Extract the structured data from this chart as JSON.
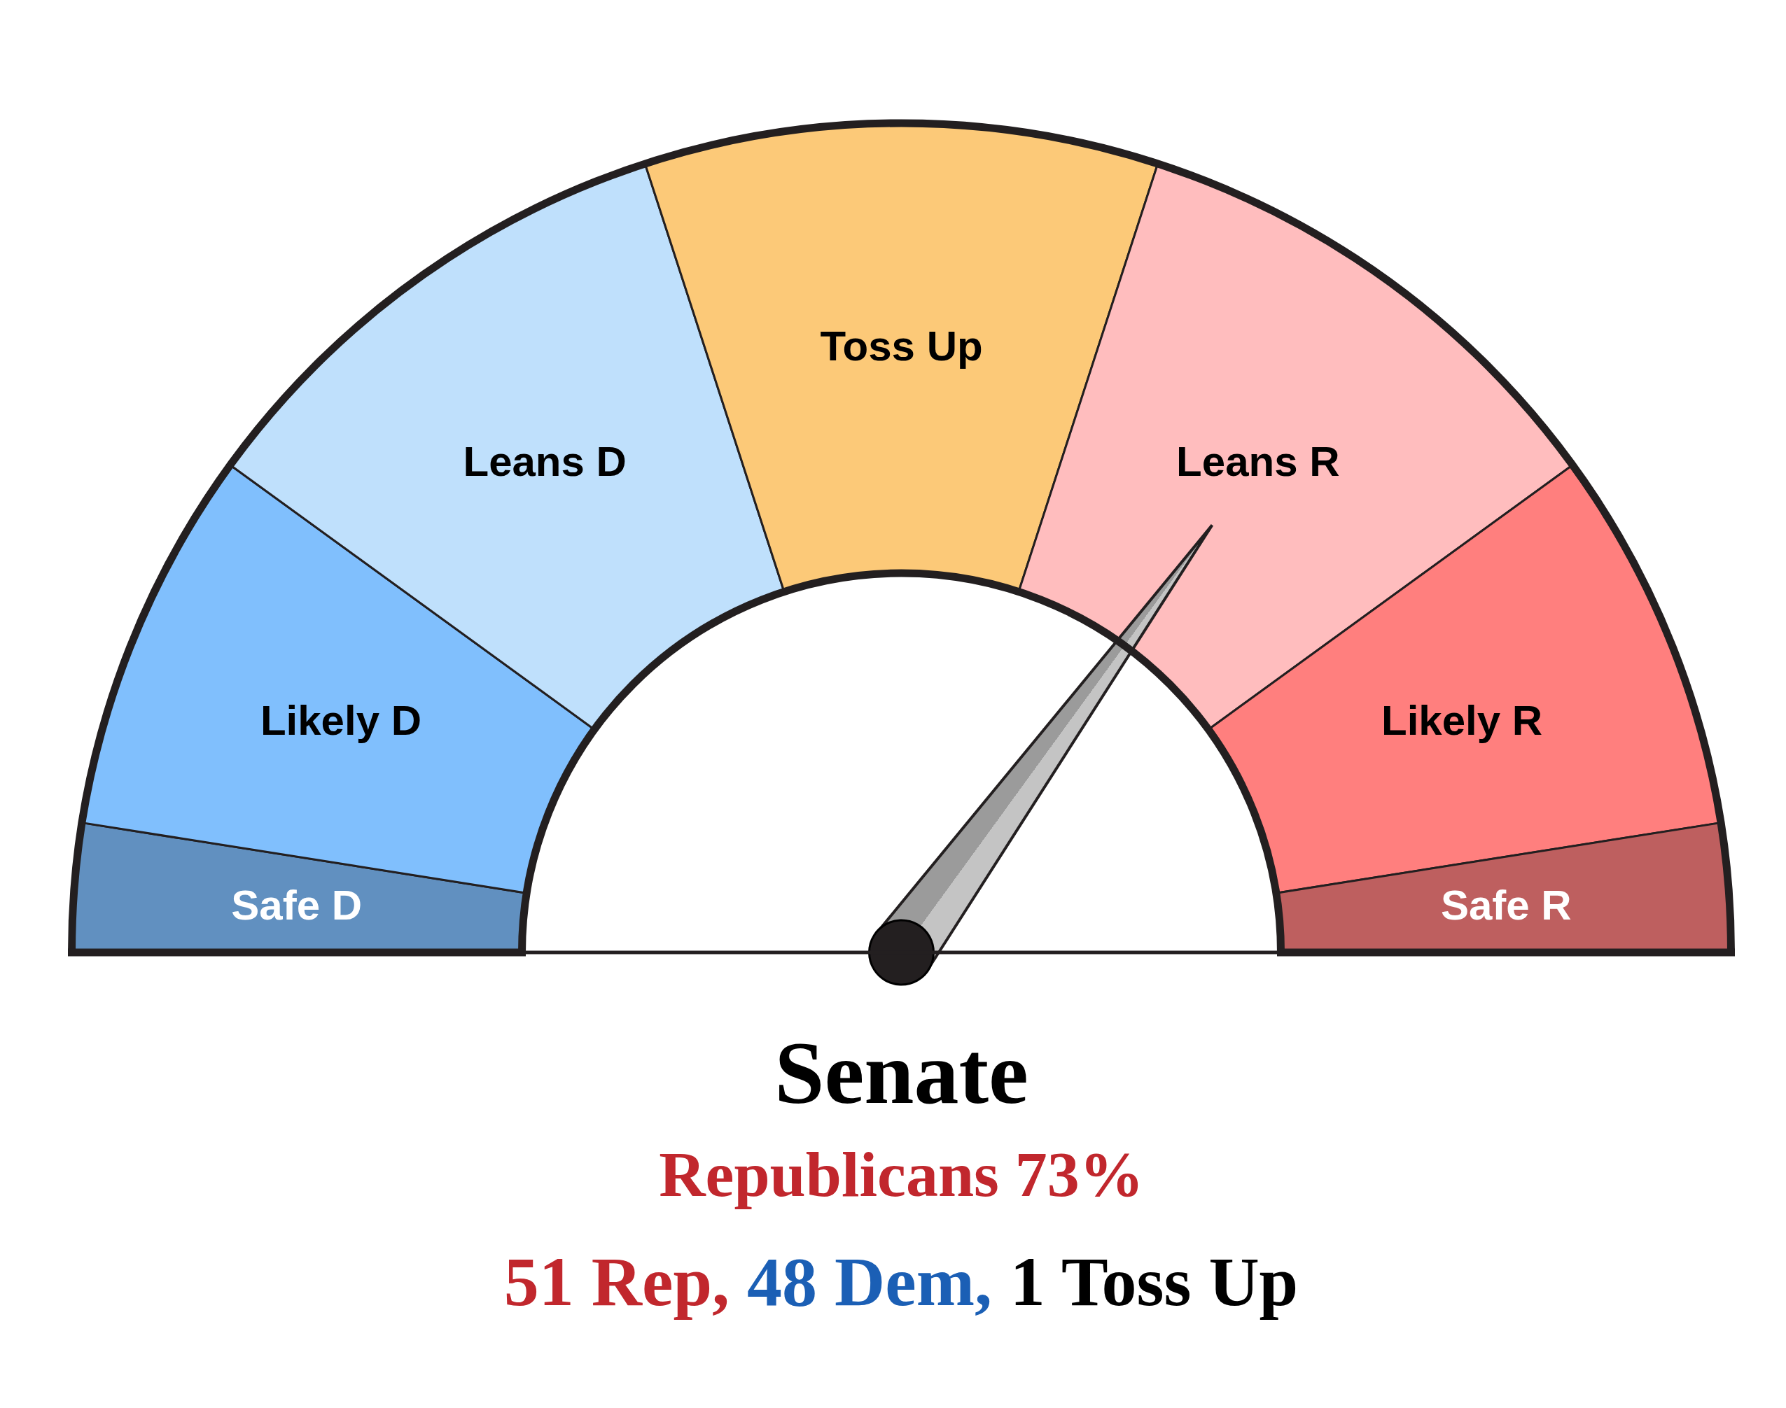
{
  "chart_data": {
    "type": "donut",
    "title": "Senate",
    "subtitle": "Republicans 73%",
    "annotations": [
      "51 Rep,",
      "48 Dem,",
      "1 Toss Up"
    ],
    "categories": [
      "Safe D",
      "Likely D",
      "Leans D",
      "Toss Up",
      "Leans R",
      "Likely R",
      "Safe R"
    ],
    "values": [
      5,
      15,
      20,
      20,
      20,
      15,
      5
    ],
    "colors": [
      "#6190c0",
      "#80bffd",
      "#bfe0fc",
      "#fcc978",
      "#ffbdbe",
      "#ff7f7e",
      "#be5f5f"
    ],
    "needle": "Leans R"
  }
}
